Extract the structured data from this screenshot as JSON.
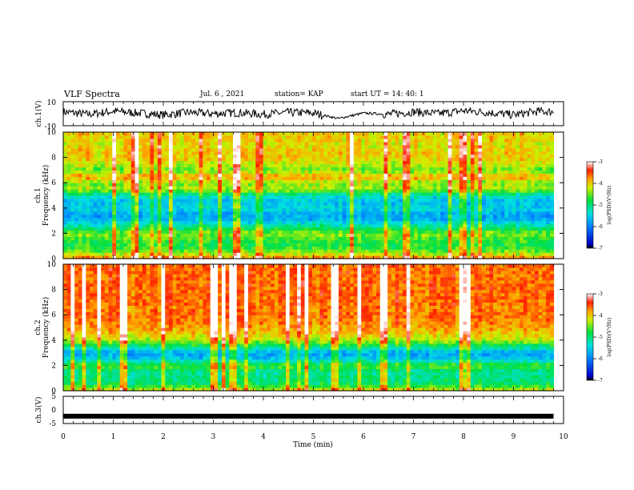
{
  "header": {
    "title": "VLF Spectra",
    "date": "Jul. 6 , 2021",
    "station": "station= KAP",
    "start": "start UT = 14: 40: 1"
  },
  "chart_data": [
    {
      "type": "line",
      "panel": "ch1-waveform",
      "ylabel": "ch.1(V)",
      "ylim": [
        -10,
        10
      ],
      "yticks": [
        "10",
        "-10"
      ],
      "xlim": [
        0,
        10
      ],
      "note_values": "noisy waveform, amplitude roughly -7 to 6 V, quieter dip near 5.5 min",
      "x": [
        0.0,
        0.5,
        1.0,
        1.5,
        2.0,
        2.5,
        3.0,
        3.5,
        4.0,
        4.5,
        5.0,
        5.5,
        6.0,
        6.5,
        7.0,
        7.5,
        8.0,
        8.5,
        9.0,
        9.5,
        9.8
      ],
      "values": [
        1.5,
        -0.5,
        2.0,
        0.5,
        -1.0,
        1.0,
        0.0,
        0.8,
        -0.5,
        1.0,
        0.5,
        -4.0,
        0.5,
        -0.5,
        1.5,
        0.0,
        2.5,
        1.0,
        -1.0,
        2.0,
        1.5
      ]
    },
    {
      "type": "heatmap",
      "panel": "ch1-spectrogram",
      "ylabel": "ch.1\nFrequency (kHz)",
      "ylim": [
        0,
        10
      ],
      "yticks": [
        "0",
        "2",
        "4",
        "6",
        "8",
        "10"
      ],
      "xlim": [
        0,
        10
      ],
      "colorbar": {
        "label": "log(PSD)(V²/Hz)",
        "range": [
          -7,
          -3
        ],
        "ticks": [
          "-3",
          "-4",
          "-5",
          "-6",
          "-7"
        ]
      },
      "freq_bands_kHz": [
        0,
        0.5,
        1,
        1.5,
        2,
        2.5,
        3,
        3.5,
        4,
        4.5,
        5,
        5.5,
        6,
        6.5,
        7,
        7.5,
        8,
        8.5,
        9,
        9.5,
        10
      ],
      "band_log_psd": [
        -3.6,
        -4.4,
        -4.8,
        -4.7,
        -4.4,
        -5.0,
        -5.6,
        -5.8,
        -5.4,
        -5.6,
        -5.3,
        -4.3,
        -4.4,
        -3.8,
        -4.5,
        -4.2,
        -4.0,
        -4.0,
        -4.1,
        -4.0,
        -4.0
      ]
    },
    {
      "type": "heatmap",
      "panel": "ch2-spectrogram",
      "ylabel": "ch.2\nFrequency (kHz)",
      "ylim": [
        0,
        10
      ],
      "yticks": [
        "0",
        "2",
        "4",
        "6",
        "8",
        "10"
      ],
      "xlim": [
        0,
        10
      ],
      "colorbar": {
        "label": "log(PSD)(V²/Hz)",
        "range": [
          -7,
          -3
        ],
        "ticks": [
          "-3",
          "-4",
          "-5",
          "-6",
          "-7"
        ]
      },
      "freq_bands_kHz": [
        0,
        0.5,
        1,
        1.5,
        2,
        2.5,
        3,
        3.5,
        4,
        4.5,
        5,
        5.5,
        6,
        6.5,
        7,
        7.5,
        8,
        8.5,
        9,
        9.5,
        10
      ],
      "band_log_psd": [
        -4.0,
        -4.9,
        -5.0,
        -5.1,
        -4.6,
        -5.5,
        -5.8,
        -5.0,
        -4.3,
        -4.0,
        -3.8,
        -3.7,
        -3.6,
        -3.7,
        -3.6,
        -3.6,
        -3.6,
        -3.6,
        -3.6,
        -3.6,
        -3.6
      ]
    },
    {
      "type": "line",
      "panel": "ch3-waveform",
      "ylabel": "ch.3(V)",
      "ylim": [
        -5,
        5
      ],
      "yticks": [
        "5",
        "0",
        "-5"
      ],
      "xlim": [
        0,
        10
      ],
      "x": [
        0,
        9.8
      ],
      "values": [
        -2.3,
        -2.3
      ]
    }
  ],
  "xaxis": {
    "label": "Time (min)",
    "ticks": [
      "0",
      "1",
      "2",
      "3",
      "4",
      "5",
      "6",
      "7",
      "8",
      "9",
      "10"
    ]
  },
  "colors": {
    "axis": "#000000",
    "waveform": "#000000"
  }
}
